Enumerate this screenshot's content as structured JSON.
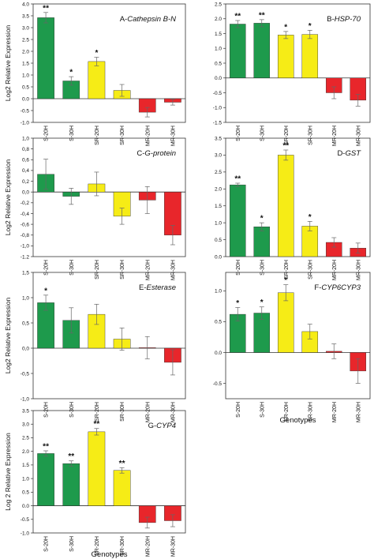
{
  "y_axis_label": "Log2 Relative Expression",
  "y_axis_label_g": "Log 2 Relative Expression",
  "x_axis_label": "Genotypes",
  "colors": {
    "green": "#1e9a4c",
    "yellow": "#f6ec16",
    "red": "#e8262b",
    "frame": "#333333",
    "error": "#666666"
  },
  "chart_data": [
    {
      "type": "bar",
      "title_prefix": "A-",
      "title_italic": "Cathepsin B-N",
      "categories": [
        "S-20H",
        "S-30H",
        "SR-20H",
        "SR-30H",
        "MR-20H",
        "MR-30H"
      ],
      "values": [
        3.42,
        0.75,
        1.57,
        0.35,
        -0.57,
        -0.15
      ],
      "errors": [
        0.22,
        0.18,
        0.18,
        0.25,
        0.2,
        0.12
      ],
      "significance": [
        "**",
        "*",
        "*",
        "",
        "",
        ""
      ],
      "bar_colors": [
        "green",
        "green",
        "yellow",
        "yellow",
        "red",
        "red"
      ],
      "ylim": [
        -1.0,
        4.0
      ],
      "ticks": [
        "-1.0",
        "-0.5",
        "0.0",
        "0.5",
        "1.0",
        "1.5",
        "2.0",
        "2.5",
        "3.0",
        "3.5",
        "4.0"
      ],
      "show_xlabel": false
    },
    {
      "type": "bar",
      "title_prefix": "B-",
      "title_italic": "HSP-70",
      "categories": [
        "S-20H",
        "S-30H",
        "SR-20H",
        "SR-30H",
        "MR-20H",
        "MR-30H"
      ],
      "values": [
        1.82,
        1.85,
        1.45,
        1.47,
        -0.5,
        -0.75
      ],
      "errors": [
        0.12,
        0.12,
        0.12,
        0.14,
        0.2,
        0.2
      ],
      "significance": [
        "**",
        "**",
        "*",
        "*",
        "",
        ""
      ],
      "bar_colors": [
        "green",
        "green",
        "yellow",
        "yellow",
        "red",
        "red"
      ],
      "ylim": [
        -1.5,
        2.5
      ],
      "ticks": [
        "-1.5",
        "-1.0",
        "-0.5",
        "0.0",
        "0.5",
        "1.0",
        "1.5",
        "2.0",
        "2.5"
      ],
      "show_xlabel": false
    },
    {
      "type": "bar",
      "title_prefix": "C-",
      "title_italic": "G-protein",
      "categories": [
        "S-20H",
        "S-30H",
        "SR-20H",
        "SR-30H",
        "MR-20H",
        "MR-30H"
      ],
      "values": [
        0.33,
        -0.08,
        0.15,
        -0.45,
        -0.15,
        -0.8
      ],
      "errors": [
        0.28,
        0.15,
        0.22,
        0.15,
        0.25,
        0.18
      ],
      "significance": [
        "",
        "",
        "",
        "",
        "",
        ""
      ],
      "bar_colors": [
        "green",
        "green",
        "yellow",
        "yellow",
        "red",
        "red"
      ],
      "ylim": [
        -1.2,
        1.0
      ],
      "ticks": [
        "-1.2",
        "-1,0",
        "-0,8",
        "-0,6",
        "-0,4",
        "-0,2",
        "0,0",
        "0,2",
        "0,4",
        "0,6",
        "0,8",
        "1,0"
      ],
      "show_xlabel": false
    },
    {
      "type": "bar",
      "title_prefix": "D-",
      "title_italic": "GST",
      "categories": [
        "S-20H",
        "S-30H",
        "SR-20H",
        "SR-30H",
        "MR-20H",
        "MR-30H"
      ],
      "values": [
        2.12,
        0.88,
        3.0,
        0.9,
        0.42,
        0.25
      ],
      "errors": [
        0.05,
        0.12,
        0.15,
        0.14,
        0.14,
        0.15
      ],
      "significance": [
        "**",
        "*",
        "**",
        "*",
        "",
        ""
      ],
      "bar_colors": [
        "green",
        "green",
        "yellow",
        "yellow",
        "red",
        "red"
      ],
      "ylim": [
        0,
        3.5
      ],
      "ticks": [
        "0.0",
        "0.5",
        "1.0",
        "1.5",
        "2.0",
        "2.5",
        "3.0",
        "3.5"
      ],
      "show_xlabel": false
    },
    {
      "type": "bar",
      "title_prefix": "E-",
      "title_italic": "Esterase",
      "categories": [
        "S-20H",
        "S-30H",
        "SR-20H",
        "SR-30H",
        "MR-20H",
        "MR-30H"
      ],
      "values": [
        0.9,
        0.55,
        0.67,
        0.18,
        0.01,
        -0.28
      ],
      "errors": [
        0.15,
        0.25,
        0.2,
        0.22,
        0.22,
        0.25
      ],
      "significance": [
        "*",
        "",
        "",
        "",
        "",
        ""
      ],
      "bar_colors": [
        "green",
        "green",
        "yellow",
        "yellow",
        "red",
        "red"
      ],
      "ylim": [
        -1.0,
        1.5
      ],
      "ticks": [
        "-1,0",
        "-0,5",
        "0,0",
        "0,5",
        "1,0",
        "1,5"
      ],
      "show_xlabel": false
    },
    {
      "type": "bar",
      "title_prefix": "F-",
      "title_italic": "CYP6CYP3",
      "categories": [
        "S-20H",
        "S-30H",
        "SR-20H",
        "SR-30H",
        "MR-20H",
        "MR-30H"
      ],
      "values": [
        0.62,
        0.64,
        0.97,
        0.34,
        0.02,
        -0.3
      ],
      "errors": [
        0.11,
        0.1,
        0.13,
        0.12,
        0.12,
        0.2
      ],
      "significance": [
        "*",
        "*",
        "*",
        "",
        "",
        ""
      ],
      "bar_colors": [
        "green",
        "green",
        "yellow",
        "yellow",
        "red",
        "red"
      ],
      "ylim": [
        -0.75,
        1.3
      ],
      "ticks": [
        "-0.5",
        "0.0",
        "0.5",
        "1.0"
      ],
      "show_xlabel": true
    },
    {
      "type": "bar",
      "title_prefix": "G-",
      "title_italic": "CYP4",
      "categories": [
        "S-20H",
        "S-30H",
        "SR-20H",
        "SR-30H",
        "MR-20H",
        "MR-30H"
      ],
      "values": [
        1.92,
        1.55,
        2.72,
        1.3,
        -0.62,
        -0.55
      ],
      "errors": [
        0.1,
        0.1,
        0.12,
        0.1,
        0.2,
        0.22
      ],
      "significance": [
        "**",
        "**",
        "**",
        "**",
        "",
        ""
      ],
      "bar_colors": [
        "green",
        "green",
        "yellow",
        "yellow",
        "red",
        "red"
      ],
      "ylim": [
        -1.0,
        3.5
      ],
      "ticks": [
        "-1.0",
        "-0.5",
        "0.0",
        "0.5",
        "1.0",
        "1.5",
        "2.0",
        "2.5",
        "3.0",
        "3.5"
      ],
      "show_xlabel": true
    }
  ]
}
